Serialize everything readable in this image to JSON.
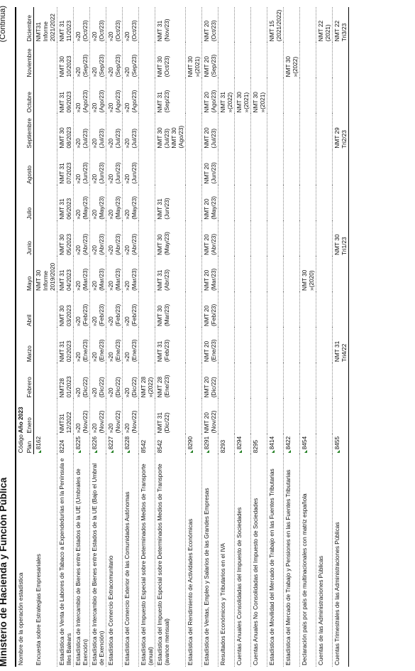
{
  "page": {
    "title": "Ministerio de Hacienda  y Función Pública",
    "continua": "(Continúa)"
  },
  "columns": {
    "nombre": "Nombre de la operación estadística",
    "codigo": "Código",
    "plan": "Plan",
    "year": "Año 2023",
    "months": [
      "Enero",
      "Febrero",
      "Marzo",
      "Abril",
      "Mayo",
      "Junio",
      "Julio",
      "Agosto",
      "Septiembre",
      "Octubre",
      "Noviembre",
      "Diciembre"
    ]
  },
  "rows": [
    {
      "name": "Encuesta sobre Estrategias Empresariales",
      "code": "8162",
      "code_flag": true,
      "cells": [
        [],
        [],
        [],
        [],
        [
          "NMT 30",
          "Informe",
          "2019/2020"
        ],
        [],
        [],
        [],
        [],
        [],
        [],
        [
          "NMT31",
          "Informe",
          "2021/2022"
        ]
      ]
    },
    {
      "name": "Estadística de Venta de Labores de Tabaco a Expendedurías en la Península e Illes Balears",
      "code": "8224",
      "cells": [
        [
          "NMT31",
          "12/2022"
        ],
        [
          "NMT28",
          "01/2023"
        ],
        [
          "NMT 31",
          "02/2023"
        ],
        [
          "NMT 30",
          "03/2023"
        ],
        [
          "NMT 31",
          "04/2023"
        ],
        [
          "NMT 30",
          "05/2023"
        ],
        [
          "NMT 31",
          "06/2023"
        ],
        [
          "NMT 31",
          "07/2023"
        ],
        [
          "NMT 30",
          "08/2023"
        ],
        [
          "NMT 31",
          "09/2023"
        ],
        [
          "NMT 30",
          "10/2023"
        ],
        [
          "NMT 31",
          "11/2023"
        ]
      ]
    },
    {
      "name": "Estadística de Intercambio de Bienes entre Estados de la UE (Umbrales de Exención)",
      "code": "8225",
      "code_flag": true,
      "cells": [
        [
          "»20",
          "(Nov/22)"
        ],
        [
          "»20",
          "(Dic/22)"
        ],
        [
          "»20",
          "(Ene/23)"
        ],
        [
          "»20",
          "(Feb/23)"
        ],
        [
          "»20",
          "(Mar/23)"
        ],
        [
          "»20",
          "(Abr/23)"
        ],
        [
          "»20",
          "(May/23)"
        ],
        [
          "»20",
          "(Jun/23)"
        ],
        [
          "»20",
          "(Jul/23)"
        ],
        [
          "»20",
          "(Ago/23)"
        ],
        [
          "»20",
          "(Sep/23)"
        ],
        [
          "»20",
          "(Oct/23)"
        ]
      ]
    },
    {
      "name": "Estadística de Intercambio de Bienes entre Estados de la UE (Bajo el Umbral de Exención)",
      "code": "8226",
      "code_flag": true,
      "cells": [
        [
          "»20",
          "(Nov/22)"
        ],
        [
          "»20",
          "(Dic/22)"
        ],
        [
          "»20",
          "(Ene/23)"
        ],
        [
          "»20",
          "(Feb/23)"
        ],
        [
          "»20",
          "(Mar/23)"
        ],
        [
          "»20",
          "(Abr/23)"
        ],
        [
          "»20",
          "(May/23)"
        ],
        [
          "»20",
          "(Jun/23)"
        ],
        [
          "»20",
          "(Jul/23)"
        ],
        [
          "»20",
          "(Ago/23)"
        ],
        [
          "»20",
          "(Sep/23)"
        ],
        [
          "»20",
          "(Oct/23)"
        ]
      ]
    },
    {
      "name": "Estadística de Comercio Extracomunitario",
      "code": "8227",
      "code_flag": true,
      "cells": [
        [
          "»20",
          "(Nov/22)"
        ],
        [
          "»20",
          "(Dic/22)"
        ],
        [
          "»20",
          "(Ene/23)"
        ],
        [
          "»20",
          "(Feb/23)"
        ],
        [
          "»20",
          "(Mar/23)"
        ],
        [
          "»20",
          "(Abr/23)"
        ],
        [
          "»20",
          "(May/23)"
        ],
        [
          "»20",
          "(Jun/23)"
        ],
        [
          "»20",
          "(Jul/23)"
        ],
        [
          "»20",
          "(Ago/23)"
        ],
        [
          "»20",
          "(Sep/23)"
        ],
        [
          "»20",
          "(Oct/23)"
        ]
      ]
    },
    {
      "name": "Estadística del Comercio Exterior de las Comunidades Autónomas",
      "code": "8228",
      "code_flag": true,
      "cells": [
        [
          "»20",
          "(Nov/22)"
        ],
        [
          "»20",
          "(Dic/22)"
        ],
        [
          "»20",
          "(Ene/23)"
        ],
        [
          "»20",
          "(Feb/23)"
        ],
        [
          "»20",
          "(Mar/23)"
        ],
        [
          "»20",
          "(Abr/23)"
        ],
        [
          "»20",
          "(May/23)"
        ],
        [
          "»20",
          "(Jun/23)"
        ],
        [
          "»20",
          "(Jul/23)"
        ],
        [
          "»20",
          "(Ago/23)"
        ],
        [
          "»20",
          "(Sep/23)"
        ],
        [
          "»20",
          "(Oct/23)"
        ]
      ]
    },
    {
      "name": "Estadística del Impuesto Especial sobre Determinados Medios de Transporte (anual)",
      "code": "8542",
      "cells": [
        [],
        [
          "NMT 28",
          "»(2022)"
        ],
        [],
        [],
        [],
        [],
        [],
        [],
        [],
        [],
        [],
        []
      ]
    },
    {
      "name": "Estadística del Impuesto Especial sobre Determinados Medios de Transporte (avance mensual)",
      "code": "8542",
      "cells": [
        [
          "NMT 31",
          "(Dic/22)"
        ],
        [
          "NMT 28",
          "(Ene/23)"
        ],
        [
          "NMT 31",
          "(Feb/23)"
        ],
        [
          "NMT 30",
          "(Mar/23)"
        ],
        [
          "NMT 31",
          "(Abr/23)"
        ],
        [
          "NMT 30",
          "(May/23)"
        ],
        [
          "NMT 31",
          "(Jun/23)"
        ],
        [],
        [
          "NMT 30",
          "(Jul/23)",
          "NMT 30",
          "(Ago/23)"
        ],
        [
          "NMT 31",
          "(Sep/23)"
        ],
        [
          "NMT 30",
          "(Oct/23)"
        ],
        [
          "NMT 31",
          "(Nov/23)"
        ]
      ]
    },
    {
      "name": "Estadística del Rendimiento de Actividades Económicas",
      "code": "8290",
      "code_flag": true,
      "cells": [
        [],
        [],
        [],
        [],
        [],
        [],
        [],
        [],
        [],
        [],
        [
          "NMT 30",
          "»(2021)"
        ],
        []
      ]
    },
    {
      "name": "Estadística de Ventas, Empleo y Salarios de las Grandes Empresas",
      "code": "8291",
      "code_flag": true,
      "cells": [
        [
          "NMT 20",
          "(Nov/22)"
        ],
        [
          "NMT 20",
          "(Dic/22)"
        ],
        [
          "NMT 20",
          "(Ene/23)"
        ],
        [
          "NMT 20",
          "(Feb/23)"
        ],
        [
          "NMT 20",
          "(Mar/23)"
        ],
        [
          "NMT 20",
          "(Abr/23)"
        ],
        [
          "NMT 20",
          "(May/23)"
        ],
        [
          "NMT 20",
          "(Jun/23)"
        ],
        [
          "NMT 20",
          "(Jul/23)"
        ],
        [
          "NMT 20",
          "(Ago/23)"
        ],
        [
          "NMT 20",
          "(Sep/23)"
        ],
        [
          "NMT 20",
          "(Oct/23)"
        ]
      ]
    },
    {
      "name": "Resultados Económicos y Tributarios en el IVA",
      "code": "8293",
      "cells": [
        [],
        [],
        [],
        [],
        [],
        [],
        [],
        [],
        [],
        [
          "NMT 31",
          "»(2022)"
        ],
        [],
        []
      ]
    },
    {
      "name": "Cuentas Anuales Consolidadas del Impuesto de Sociedades",
      "code": "8294",
      "code_flag": true,
      "cells": [
        [],
        [],
        [],
        [],
        [],
        [],
        [],
        [],
        [],
        [
          "NMT 30",
          "»(2021)"
        ],
        [],
        []
      ]
    },
    {
      "name": "Cuentas Anuales No Consolidadas del Impuesto de Sociedades",
      "code": "8295",
      "cells": [
        [],
        [],
        [],
        [],
        [],
        [],
        [],
        [],
        [],
        [
          "NMT 30",
          "»(2021)"
        ],
        [],
        []
      ]
    },
    {
      "name": "Estadística de Movilidad del Mercado de Trabajo en las Fuentes Tributarias",
      "code": "8414",
      "code_flag": true,
      "cells": [
        [],
        [],
        [],
        [],
        [],
        [],
        [],
        [],
        [],
        [],
        [],
        [
          "NMT 15",
          "(2021/2022)"
        ]
      ]
    },
    {
      "name": "Estadística del Mercado de Trabajo y Pensiones en las Fuentes Tributarias",
      "code": "8422",
      "code_flag": true,
      "cells": [
        [],
        [],
        [],
        [],
        [],
        [],
        [],
        [],
        [],
        [],
        [
          "NMT 30",
          "»(2022)"
        ],
        []
      ]
    },
    {
      "name": "Declaración país por país de multinacionales con matriz española",
      "code": "8454",
      "code_flag": true,
      "cells": [
        [],
        [],
        [],
        [],
        [
          "NMT 30",
          "»(2020)"
        ],
        [],
        [],
        [],
        [],
        [],
        [],
        []
      ]
    },
    {
      "name": "Cuentas de las Administraciones Públicas",
      "code": "",
      "cells": [
        [],
        [],
        [],
        [],
        [],
        [],
        [],
        [],
        [],
        [],
        [],
        [
          "NMT 22",
          "(2021)"
        ]
      ]
    },
    {
      "name": "Cuentas Trimestrales de las Administraciones Públicas",
      "code": "8455",
      "code_flag": true,
      "cells": [
        [],
        [],
        [
          "NMT 31",
          "Tri4/22"
        ],
        [],
        [],
        [
          "NMT 30",
          "Tri1/23"
        ],
        [],
        [],
        [
          "NMT 29",
          "Tri2/23"
        ],
        [],
        [],
        [
          "NMT 22",
          "Tri3/23"
        ]
      ]
    }
  ]
}
